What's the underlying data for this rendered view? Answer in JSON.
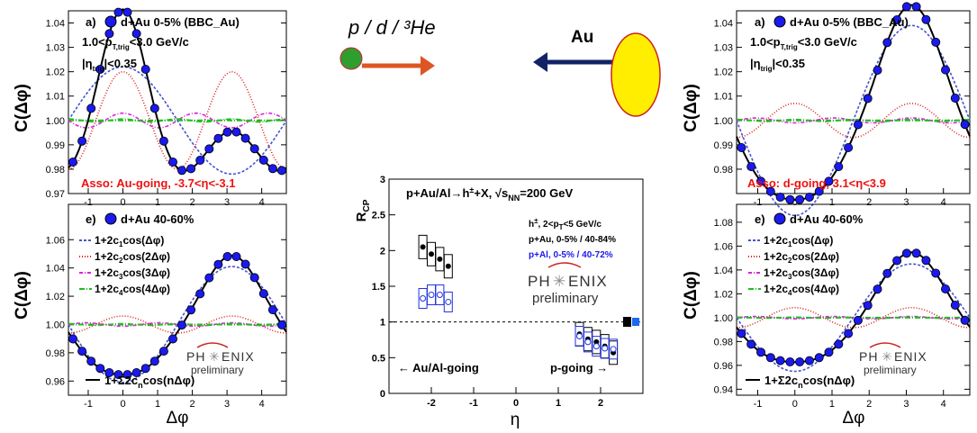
{
  "chart_data": [
    {
      "id": "top-left",
      "type": "line",
      "ylabel": "C(Δφ)",
      "xlabel": "",
      "xlim": [
        -1.57,
        4.71
      ],
      "ylim": [
        0.97,
        1.045
      ],
      "xticks": [
        -1,
        0,
        1,
        2,
        3,
        4
      ],
      "yticks": [
        "0.97",
        "0.98",
        "0.99",
        "1.00",
        "1.01",
        "1.02",
        "1.03",
        "1.04"
      ],
      "legend_marker": "a)",
      "legend_label": "d+Au 0-5% (BBC_Au)",
      "notes": [
        "1.0<p",
        "T,trig",
        "<3.0 GeV/c",
        "|η",
        "trig",
        "|<0.35"
      ],
      "annotation": "Asso: Au-going, -3.7<η<-3.1",
      "c0": 1.0,
      "c": [
        0.011,
        0.01,
        0.0015,
        0.0003
      ]
    },
    {
      "id": "bottom-left",
      "type": "line",
      "ylabel": "C(Δφ)",
      "xlabel": "Δφ",
      "xlim": [
        -1.57,
        4.71
      ],
      "ylim": [
        0.95,
        1.085
      ],
      "xticks": [
        -1,
        0,
        1,
        2,
        3,
        4
      ],
      "yticks": [
        "0.96",
        "0.98",
        "1.00",
        "1.02",
        "1.04",
        "1.06"
      ],
      "legend_marker": "e)",
      "legend_label": "d+Au 40-60%",
      "fourier_legend": [
        "1+2c",
        "1",
        "cos(Δφ)",
        "1+2c",
        "2",
        "cos(2Δφ)",
        "1+2c",
        "3",
        "cos(3Δφ)",
        "1+2c",
        "4",
        "cos(4Δφ)"
      ],
      "sum_legend": [
        "1+Σ2c",
        "n",
        "cos(nΔφ)"
      ],
      "c0": 1.0,
      "c": [
        -0.0205,
        0.003,
        -0.0006,
        0.0003
      ]
    },
    {
      "id": "top-right",
      "type": "line",
      "ylabel": "C(Δφ)",
      "xlabel": "",
      "xlim": [
        -1.57,
        4.71
      ],
      "ylim": [
        0.97,
        1.045
      ],
      "xticks": [
        -1,
        0,
        1,
        2,
        3,
        4
      ],
      "yticks": [
        "0.98",
        "0.99",
        "1.00",
        "1.01",
        "1.02",
        "1.03",
        "1.04"
      ],
      "legend_marker": "a)",
      "legend_label": "d+Au 0-5% (BBC_Au)",
      "notes": [
        "1.0<p",
        "T,trig",
        "<3.0 GeV/c",
        "|η",
        "trig",
        "|<0.35"
      ],
      "annotation": "Asso: d-going, 3.1<η<3.9",
      "c0": 1.0,
      "c": [
        -0.0195,
        0.0035,
        -0.0005,
        0.0002
      ]
    },
    {
      "id": "bottom-right",
      "type": "line",
      "ylabel": "C(Δφ)",
      "xlabel": "Δφ",
      "xlim": [
        -1.57,
        4.71
      ],
      "ylim": [
        0.935,
        1.095
      ],
      "xticks": [
        -1,
        0,
        1,
        2,
        3,
        4
      ],
      "yticks": [
        "0.94",
        "0.96",
        "0.98",
        "1.00",
        "1.02",
        "1.04",
        "1.06",
        "1.08"
      ],
      "legend_marker": "e)",
      "legend_label": "d+Au 40-60%",
      "fourier_legend": [
        "1+2c",
        "1",
        "cos(Δφ)",
        "1+2c",
        "2",
        "cos(2Δφ)",
        "1+2c",
        "3",
        "cos(3Δφ)",
        "1+2c",
        "4",
        "cos(4Δφ)"
      ],
      "sum_legend": [
        "1+Σ2c",
        "n",
        "cos(nΔφ)"
      ],
      "c0": 1.0,
      "c": [
        -0.0225,
        0.0042,
        -0.0005,
        0.0002
      ]
    },
    {
      "id": "rcp",
      "type": "scatter",
      "title": "p+Au/Al→h",
      "title_sup": "±",
      "title_tail": "+X, √s",
      "title_sub": "NN",
      "title_end": "=200 GeV",
      "ylabel": "R",
      "ylabel_sub": "CP",
      "xlabel": "η",
      "xlim": [
        -3,
        3
      ],
      "ylim": [
        0,
        3
      ],
      "xticks": [
        "-2",
        "-1",
        "0",
        "1",
        "2"
      ],
      "yticks": [
        "0",
        "0.5",
        "1",
        "1.5",
        "2",
        "2.5",
        "3"
      ],
      "info": [
        "h",
        "±",
        ", 2<p",
        "T",
        "<5 GeV/c"
      ],
      "info2": "p+Au, 0-5% / 40-84%",
      "info3": "p+Al, 0-5% / 40-72%",
      "left_label": "← Au/Al-going",
      "right_label": "p-going →",
      "series": [
        {
          "name": "p+Au, 0-5% / 40-84%",
          "marker": "filled",
          "x": [
            -2.2,
            -2.0,
            -1.8,
            -1.6,
            1.5,
            1.7,
            1.9,
            2.1,
            2.3
          ],
          "y": [
            2.05,
            1.95,
            1.88,
            1.78,
            0.83,
            0.76,
            0.72,
            0.66,
            0.57
          ]
        },
        {
          "name": "p+Al, 0-5% / 40-72%",
          "marker": "open",
          "x": [
            -2.2,
            -2.0,
            -1.8,
            -1.6,
            1.5,
            1.7,
            1.9,
            2.1,
            2.3
          ],
          "y": [
            1.33,
            1.38,
            1.38,
            1.28,
            0.8,
            0.72,
            0.66,
            0.63,
            0.62
          ]
        }
      ],
      "reference_line": 1.0
    }
  ],
  "logo": {
    "ph": "PH",
    "enix": "ENIX",
    "sub": "preliminary"
  },
  "diagram": {
    "beam_label": "p / d / ³He",
    "target_label": "Au",
    "colors": {
      "projectile": "#2e9e2e",
      "arrow_left": "#dd5522",
      "arrow_right": "#112266",
      "target": "#ffee00"
    }
  }
}
